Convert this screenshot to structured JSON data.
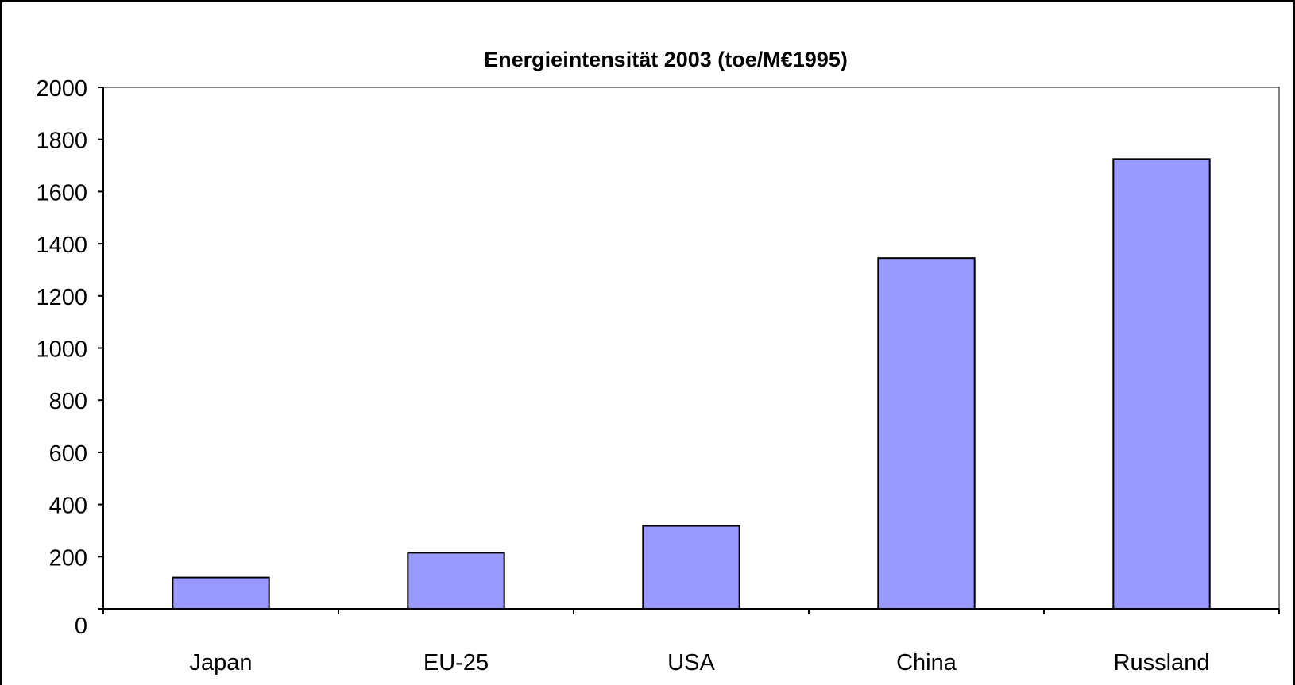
{
  "chart_data": {
    "type": "bar",
    "title": "Energieintensität 2003 (toe/M€1995)",
    "xlabel": "",
    "ylabel": "",
    "categories": [
      "Japan",
      "EU-25",
      "USA",
      "China",
      "Russland"
    ],
    "values": [
      120,
      215,
      318,
      1345,
      1725
    ],
    "ylim": [
      0,
      2000
    ],
    "yticks": [
      0,
      200,
      400,
      600,
      800,
      1000,
      1200,
      1400,
      1600,
      1800,
      2000
    ],
    "grid": false,
    "legend": "none",
    "bar_color": "#9999ff",
    "bar_edge_color": "#000000",
    "plot_border_color": "#808080"
  }
}
